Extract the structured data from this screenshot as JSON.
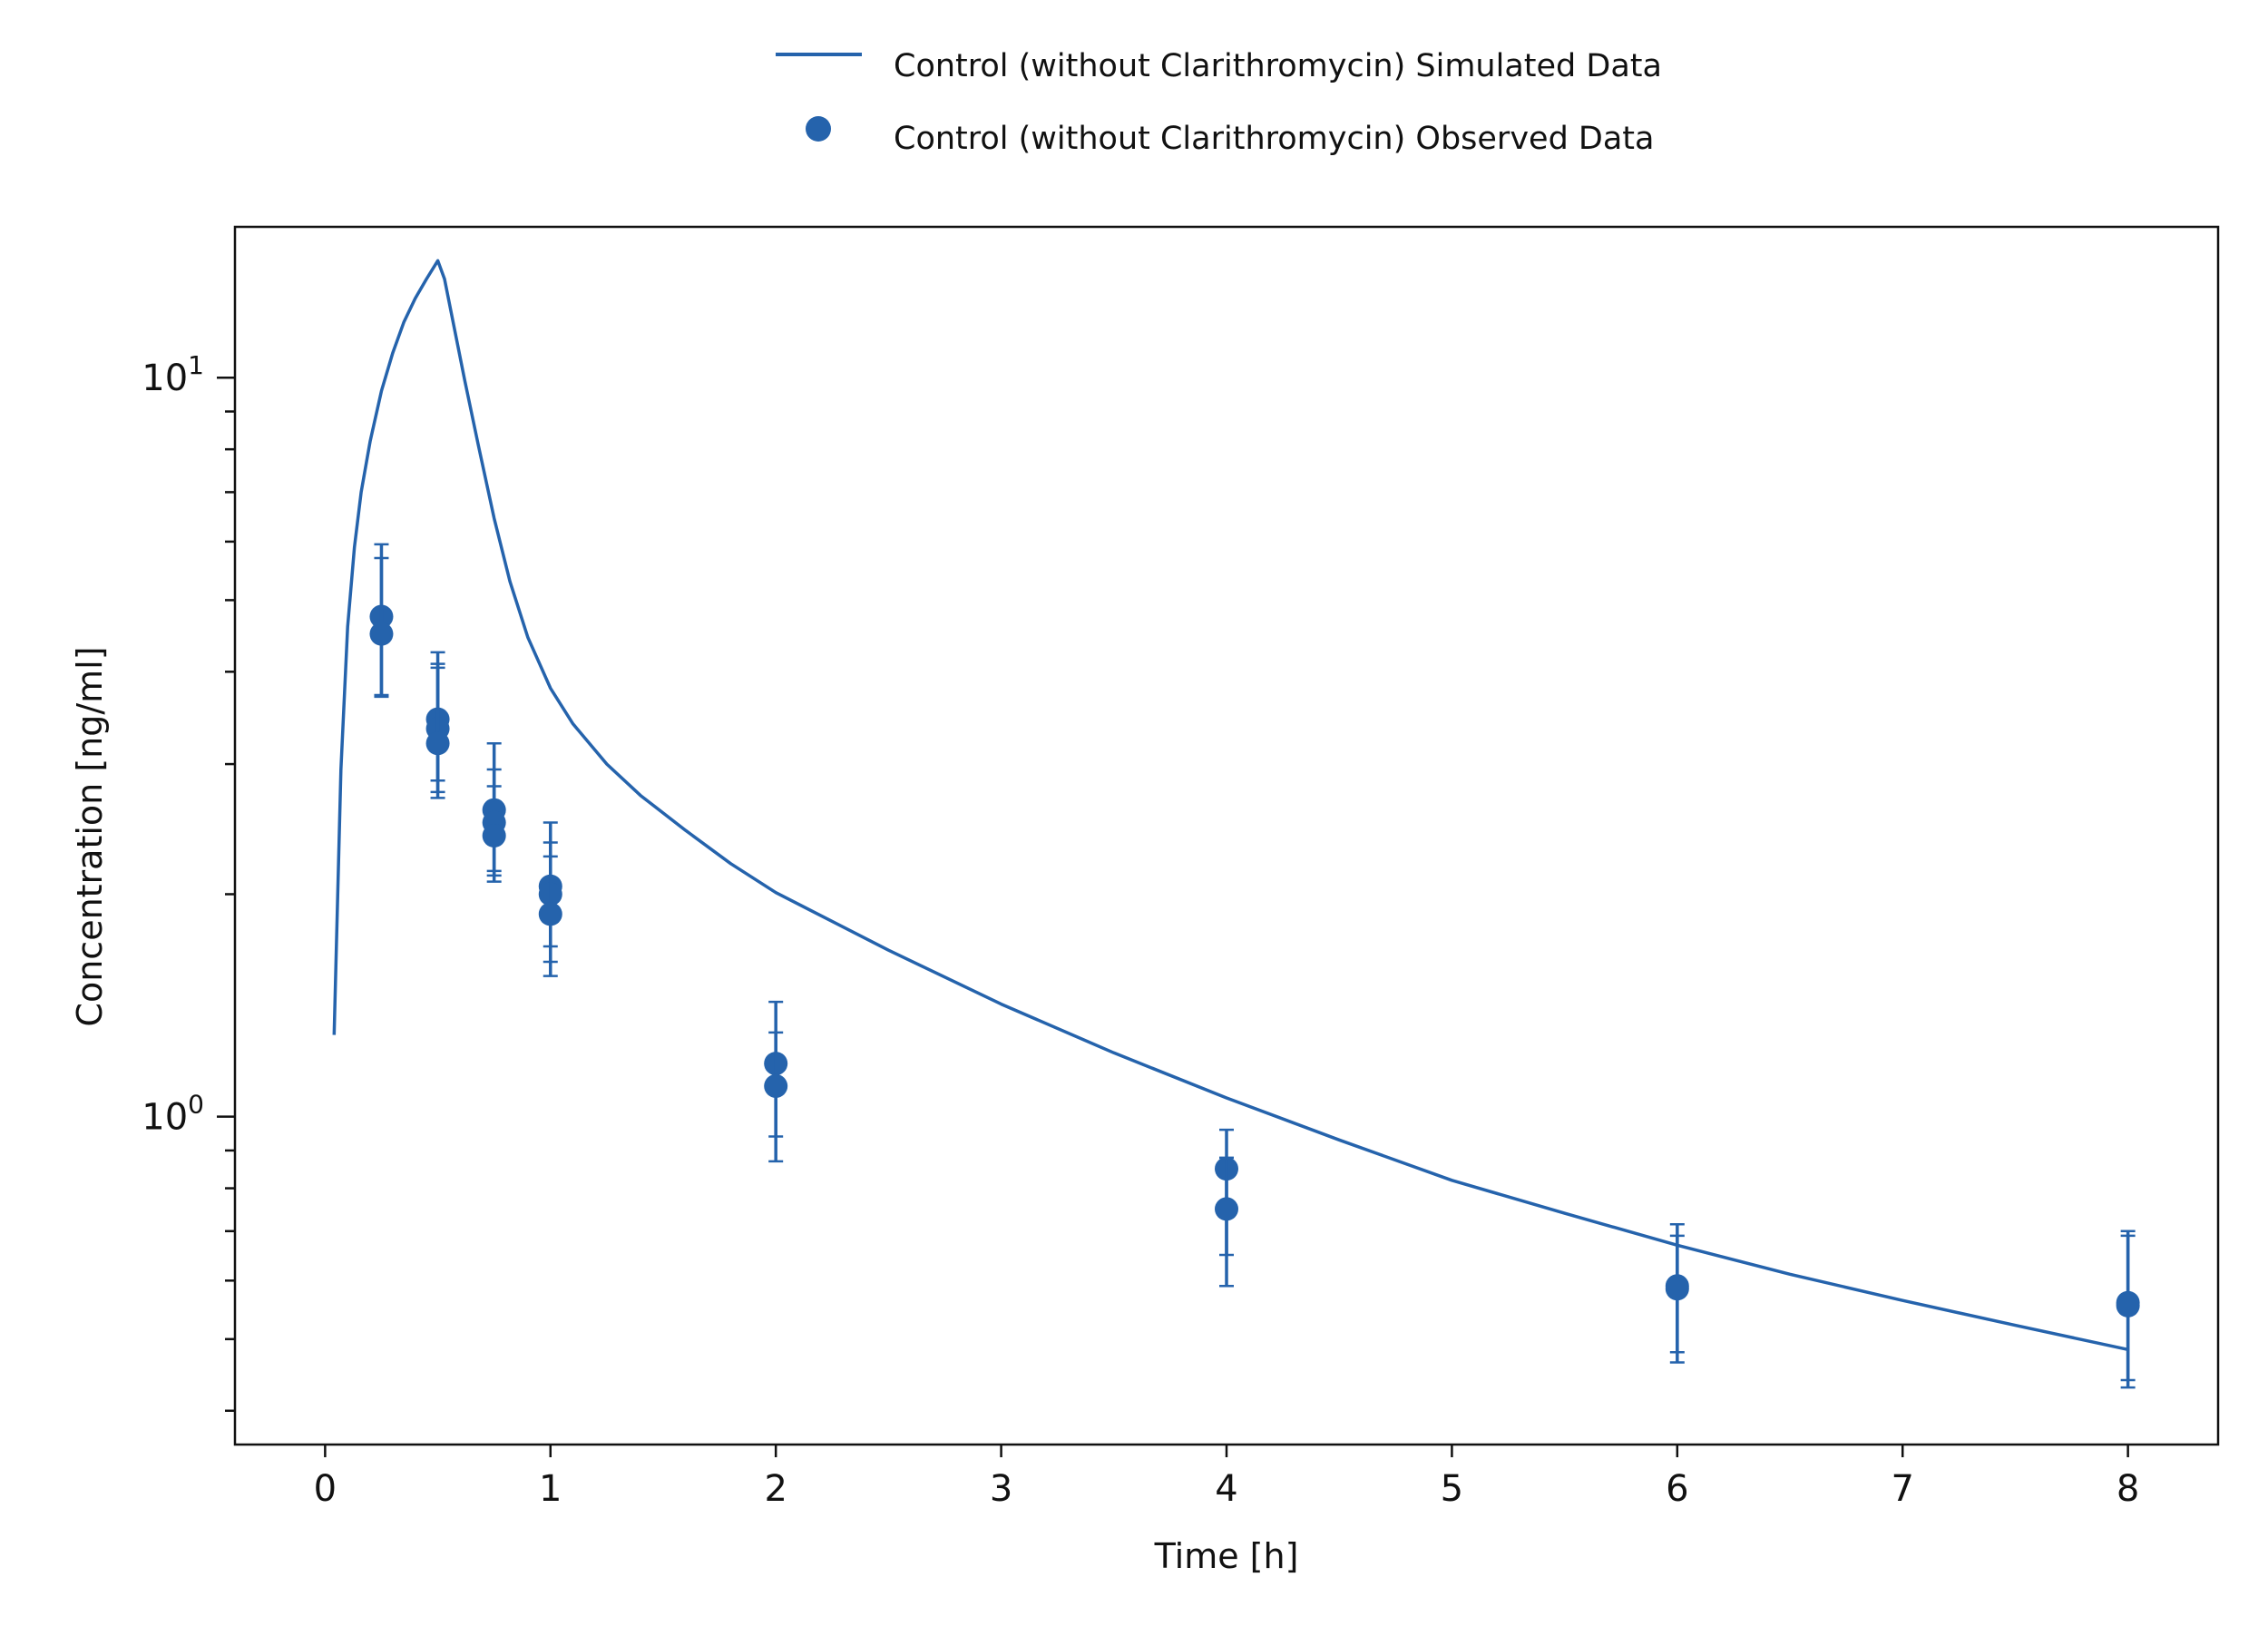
{
  "chart_data": {
    "type": "line",
    "title": "",
    "xlabel": "Time [h]",
    "ylabel": "Concentration [ng/ml]",
    "xlim": [
      -0.4,
      8.4
    ],
    "ylim": [
      0.36,
      16.0
    ],
    "y_scale": "log",
    "grid": false,
    "legend_position": "top-center",
    "color": "#2563ac",
    "x_ticks": [
      0,
      1,
      2,
      3,
      4,
      5,
      6,
      7,
      8
    ],
    "x_tick_labels": [
      "0",
      "1",
      "2",
      "3",
      "4",
      "5",
      "6",
      "7",
      "8"
    ],
    "y_major_ticks": [
      {
        "value": 1,
        "base": "10",
        "exp": "0"
      },
      {
        "value": 10,
        "base": "10",
        "exp": "1"
      }
    ],
    "y_minor_ticks": [
      0.4,
      0.5,
      0.6,
      0.7,
      0.8,
      0.9,
      2,
      3,
      4,
      5,
      6,
      7,
      8,
      9
    ],
    "series": [
      {
        "name": "Control (without Clarithromycin) Simulated Data",
        "kind": "line",
        "x": [
          0.04,
          0.07,
          0.1,
          0.13,
          0.16,
          0.2,
          0.25,
          0.3,
          0.35,
          0.4,
          0.45,
          0.5,
          0.53,
          0.57,
          0.62,
          0.68,
          0.75,
          0.82,
          0.9,
          1.0,
          1.1,
          1.25,
          1.4,
          1.6,
          1.8,
          2.0,
          2.5,
          3.0,
          3.5,
          4.0,
          4.5,
          5.0,
          5.5,
          6.0,
          6.5,
          7.0,
          7.5,
          8.0
        ],
        "y": [
          1.29,
          2.95,
          4.6,
          5.9,
          7.0,
          8.2,
          9.6,
          10.8,
          11.9,
          12.8,
          13.6,
          14.4,
          13.6,
          11.8,
          9.9,
          8.1,
          6.45,
          5.3,
          4.45,
          3.8,
          3.4,
          3.0,
          2.72,
          2.44,
          2.2,
          2.01,
          1.68,
          1.42,
          1.22,
          1.06,
          0.93,
          0.82,
          0.74,
          0.67,
          0.612,
          0.564,
          0.522,
          0.484
        ]
      },
      {
        "name": "Control (without Clarithromycin) Observed Data",
        "kind": "scatter",
        "points": [
          {
            "x": 0.25,
            "y": 4.75,
            "err_low": 3.7,
            "err_high": 5.95
          },
          {
            "x": 0.25,
            "y": 4.5,
            "err_low": 3.72,
            "err_high": 5.7
          },
          {
            "x": 0.5,
            "y": 3.45,
            "err_low": 2.75,
            "err_high": 4.25
          },
          {
            "x": 0.5,
            "y": 3.35,
            "err_low": 2.7,
            "err_high": 4.1
          },
          {
            "x": 0.5,
            "y": 3.2,
            "err_low": 2.85,
            "err_high": 4.05
          },
          {
            "x": 0.75,
            "y": 2.6,
            "err_low": 2.08,
            "err_high": 3.2
          },
          {
            "x": 0.75,
            "y": 2.5,
            "err_low": 2.12,
            "err_high": 2.95
          },
          {
            "x": 0.75,
            "y": 2.4,
            "err_low": 2.15,
            "err_high": 2.8
          },
          {
            "x": 1.0,
            "y": 2.05,
            "err_low": 1.55,
            "err_high": 2.5
          },
          {
            "x": 1.0,
            "y": 2.0,
            "err_low": 1.62,
            "err_high": 2.35
          },
          {
            "x": 1.0,
            "y": 1.88,
            "err_low": 1.7,
            "err_high": 2.25
          },
          {
            "x": 2.0,
            "y": 1.18,
            "err_low": 0.87,
            "err_high": 1.43
          },
          {
            "x": 2.0,
            "y": 1.1,
            "err_low": 0.94,
            "err_high": 1.3
          },
          {
            "x": 4.0,
            "y": 0.85,
            "err_low": 0.59,
            "err_high": 0.96
          },
          {
            "x": 4.0,
            "y": 0.75,
            "err_low": 0.65,
            "err_high": 0.88
          },
          {
            "x": 6.0,
            "y": 0.59,
            "err_low": 0.465,
            "err_high": 0.715
          },
          {
            "x": 6.0,
            "y": 0.585,
            "err_low": 0.48,
            "err_high": 0.69
          },
          {
            "x": 8.0,
            "y": 0.56,
            "err_low": 0.43,
            "err_high": 0.7
          },
          {
            "x": 8.0,
            "y": 0.555,
            "err_low": 0.44,
            "err_high": 0.69
          }
        ]
      }
    ]
  }
}
